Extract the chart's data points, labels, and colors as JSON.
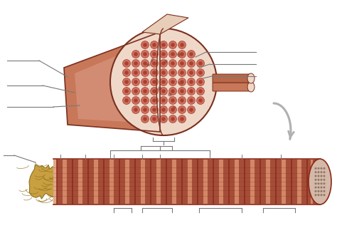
{
  "bg_color": "#ffffff",
  "muscle_outer": "#c87858",
  "muscle_light": "#dda090",
  "muscle_dark": "#7a3020",
  "muscle_mid": "#b86848",
  "fiber_bg": "#f0d8c8",
  "fiber_ring": "#d07060",
  "fiber_inner": "#aa4030",
  "sarcomere_dark": "#8b2818",
  "sarcomere_mid": "#c86848",
  "sarcomere_light": "#e0a888",
  "sarcomere_band": "#d08068",
  "tendon_main": "#c8a040",
  "tendon_light": "#e0c060",
  "tendon_dark": "#907020",
  "ann_color": "#787878",
  "arrow_color": "#b0b0b0",
  "connective": "#e8cdb8",
  "epimysium": "#c07858"
}
